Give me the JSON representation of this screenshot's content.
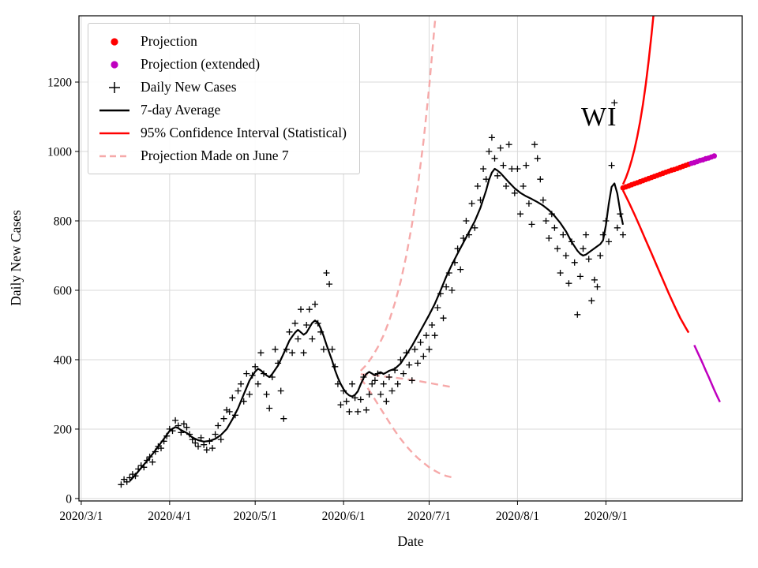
{
  "legend": {
    "items": [
      {
        "label": "Projection",
        "marker": "dot",
        "color": "#ff0000"
      },
      {
        "label": "Projection (extended)",
        "marker": "dot",
        "color": "#bf00bf"
      },
      {
        "label": "Daily New Cases",
        "marker": "plus",
        "color": "#000000"
      },
      {
        "label": "7-day Average",
        "marker": "line",
        "color": "#000000"
      },
      {
        "label": "95% Confidence Interval (Statistical)",
        "marker": "line",
        "color": "#ff0000"
      },
      {
        "label": "Projection Made on June 7",
        "marker": "dashed-line",
        "color": "#f6a9a9"
      }
    ]
  },
  "chart_data": {
    "type": "line",
    "title": "",
    "annotation": {
      "text": "WI",
      "near_date": "2020/8/28",
      "near_value": 1090
    },
    "x_axis": {
      "label": "Date",
      "day_zero": "2020/3/1",
      "ticks": [
        {
          "day": 0,
          "label": "2020/3/1"
        },
        {
          "day": 31,
          "label": "2020/4/1"
        },
        {
          "day": 61,
          "label": "2020/5/1"
        },
        {
          "day": 92,
          "label": "2020/6/1"
        },
        {
          "day": 122,
          "label": "2020/7/1"
        },
        {
          "day": 153,
          "label": "2020/8/1"
        },
        {
          "day": 184,
          "label": "2020/9/1"
        }
      ]
    },
    "y_axis": {
      "label": "Daily New Cases",
      "ticks": [
        0,
        200,
        400,
        600,
        800,
        1000,
        1200
      ],
      "range": [
        0,
        1390
      ]
    },
    "grid": true,
    "colors": {
      "daily_cases": "#000000",
      "avg7": "#000000",
      "projection": "#ff0000",
      "projection_extended": "#bf00bf",
      "confidence_interval": "#ff0000",
      "june7_projection": "#f6a9a9",
      "grid": "#d9d9d9"
    },
    "series": {
      "daily_new_cases": {
        "type": "scatter",
        "marker": "plus",
        "start_day": 14,
        "values": [
          40,
          55,
          48,
          60,
          70,
          65,
          85,
          95,
          90,
          110,
          120,
          105,
          135,
          150,
          145,
          165,
          180,
          200,
          195,
          225,
          210,
          190,
          215,
          205,
          185,
          170,
          160,
          150,
          175,
          155,
          140,
          165,
          145,
          185,
          210,
          170,
          230,
          255,
          250,
          290,
          240,
          310,
          330,
          280,
          360,
          300,
          355,
          380,
          330,
          420,
          360,
          300,
          260,
          350,
          430,
          390,
          310,
          230,
          430,
          480,
          420,
          505,
          460,
          545,
          420,
          500,
          545,
          460,
          560,
          505,
          480,
          430,
          650,
          618,
          430,
          380,
          330,
          270,
          310,
          280,
          250,
          330,
          290,
          250,
          285,
          350,
          255,
          300,
          330,
          340,
          360,
          300,
          330,
          280,
          350,
          310,
          370,
          330,
          400,
          360,
          420,
          385,
          340,
          430,
          390,
          450,
          410,
          470,
          430,
          500,
          470,
          550,
          590,
          520,
          610,
          650,
          600,
          680,
          720,
          660,
          750,
          800,
          760,
          850,
          780,
          900,
          860,
          950,
          920,
          1000,
          1040,
          980,
          930,
          1010,
          960,
          900,
          1020,
          950,
          880,
          950,
          820,
          900,
          960,
          850,
          790,
          1020,
          980,
          920,
          860,
          800,
          750,
          820,
          780,
          720,
          650,
          760,
          700,
          620,
          740,
          680,
          530,
          640,
          720,
          760,
          690,
          570,
          630,
          610,
          700,
          760,
          800,
          740,
          960,
          1140,
          780,
          820,
          760
        ]
      },
      "avg_7day": {
        "type": "line",
        "points": [
          [
            17,
            50
          ],
          [
            19,
            68
          ],
          [
            21,
            88
          ],
          [
            23,
            108
          ],
          [
            25,
            128
          ],
          [
            27,
            150
          ],
          [
            29,
            172
          ],
          [
            31,
            195
          ],
          [
            32,
            201
          ],
          [
            33,
            206
          ],
          [
            34,
            203
          ],
          [
            35,
            197
          ],
          [
            37,
            189
          ],
          [
            39,
            176
          ],
          [
            41,
            168
          ],
          [
            43,
            164
          ],
          [
            45,
            166
          ],
          [
            47,
            172
          ],
          [
            49,
            183
          ],
          [
            51,
            200
          ],
          [
            53,
            228
          ],
          [
            55,
            260
          ],
          [
            57,
            300
          ],
          [
            59,
            340
          ],
          [
            61,
            366
          ],
          [
            62,
            374
          ],
          [
            63,
            369
          ],
          [
            64,
            361
          ],
          [
            65,
            355
          ],
          [
            66,
            350
          ],
          [
            67,
            359
          ],
          [
            69,
            383
          ],
          [
            71,
            418
          ],
          [
            73,
            455
          ],
          [
            74,
            467
          ],
          [
            75,
            478
          ],
          [
            76,
            486
          ],
          [
            77,
            479
          ],
          [
            78,
            472
          ],
          [
            79,
            478
          ],
          [
            80,
            492
          ],
          [
            81,
            506
          ],
          [
            82,
            513
          ],
          [
            83,
            507
          ],
          [
            84,
            490
          ],
          [
            85,
            468
          ],
          [
            86,
            443
          ],
          [
            87,
            420
          ],
          [
            88,
            397
          ],
          [
            89,
            370
          ],
          [
            90,
            348
          ],
          [
            91,
            330
          ],
          [
            92,
            315
          ],
          [
            93,
            304
          ],
          [
            94,
            297
          ],
          [
            95,
            294
          ],
          [
            96,
            299
          ],
          [
            97,
            309
          ],
          [
            98,
            329
          ],
          [
            99,
            347
          ],
          [
            100,
            359
          ],
          [
            101,
            365
          ],
          [
            102,
            360
          ],
          [
            103,
            355
          ],
          [
            104,
            361
          ],
          [
            105,
            364
          ],
          [
            106,
            359
          ],
          [
            107,
            363
          ],
          [
            108,
            368
          ],
          [
            110,
            374
          ],
          [
            112,
            389
          ],
          [
            114,
            414
          ],
          [
            116,
            440
          ],
          [
            118,
            469
          ],
          [
            120,
            499
          ],
          [
            122,
            529
          ],
          [
            124,
            561
          ],
          [
            126,
            599
          ],
          [
            128,
            639
          ],
          [
            130,
            674
          ],
          [
            132,
            706
          ],
          [
            134,
            737
          ],
          [
            136,
            768
          ],
          [
            138,
            799
          ],
          [
            140,
            838
          ],
          [
            142,
            888
          ],
          [
            143,
            918
          ],
          [
            144,
            939
          ],
          [
            145,
            950
          ],
          [
            146,
            945
          ],
          [
            147,
            938
          ],
          [
            148,
            929
          ],
          [
            150,
            911
          ],
          [
            152,
            894
          ],
          [
            154,
            881
          ],
          [
            156,
            871
          ],
          [
            158,
            863
          ],
          [
            160,
            854
          ],
          [
            162,
            844
          ],
          [
            164,
            831
          ],
          [
            166,
            814
          ],
          [
            168,
            794
          ],
          [
            170,
            770
          ],
          [
            172,
            739
          ],
          [
            174,
            714
          ],
          [
            175,
            705
          ],
          [
            176,
            700
          ],
          [
            177,
            703
          ],
          [
            178,
            709
          ],
          [
            179,
            715
          ],
          [
            180,
            721
          ],
          [
            181,
            727
          ],
          [
            182,
            733
          ],
          [
            183,
            744
          ],
          [
            184,
            788
          ],
          [
            185,
            849
          ],
          [
            186,
            898
          ],
          [
            187,
            908
          ],
          [
            188,
            879
          ],
          [
            189,
            829
          ],
          [
            190,
            789
          ]
        ]
      },
      "projection": {
        "type": "scatter",
        "marker": "dot",
        "start_day": 190,
        "values": [
          895,
          898,
          901,
          904,
          907,
          910,
          913,
          916,
          919,
          922,
          925,
          928,
          931,
          934,
          937,
          940,
          943,
          946,
          948,
          951,
          954,
          957,
          960,
          963
        ]
      },
      "projection_extended": {
        "type": "scatter",
        "marker": "dot",
        "start_day": 214,
        "values": [
          966,
          968,
          971,
          974,
          976,
          979,
          981,
          984,
          987
        ]
      },
      "ci_upper": {
        "type": "line",
        "points": [
          [
            190,
            905
          ],
          [
            191,
            924
          ],
          [
            192,
            947
          ],
          [
            193,
            974
          ],
          [
            194,
            1006
          ],
          [
            195,
            1043
          ],
          [
            196,
            1086
          ],
          [
            197,
            1136
          ],
          [
            198,
            1194
          ],
          [
            199,
            1261
          ],
          [
            200,
            1338
          ],
          [
            201,
            1420
          ]
        ]
      },
      "ci_lower": {
        "type": "line",
        "points": [
          [
            190,
            888
          ],
          [
            192,
            854
          ],
          [
            194,
            819
          ],
          [
            196,
            782
          ],
          [
            198,
            744
          ],
          [
            200,
            706
          ],
          [
            202,
            668
          ],
          [
            204,
            630
          ],
          [
            206,
            592
          ],
          [
            208,
            556
          ],
          [
            210,
            521
          ],
          [
            212,
            492
          ],
          [
            213,
            478
          ]
        ]
      },
      "ci_lower_extended": {
        "type": "line",
        "points": [
          [
            215,
            442
          ],
          [
            216,
            424
          ],
          [
            217,
            406
          ],
          [
            218,
            388
          ],
          [
            219,
            369
          ],
          [
            220,
            351
          ],
          [
            221,
            332
          ],
          [
            222,
            313
          ],
          [
            223,
            295
          ],
          [
            224,
            278
          ]
        ]
      },
      "june7_upper": {
        "type": "line",
        "dash": true,
        "points": [
          [
            98,
            368
          ],
          [
            100,
            385
          ],
          [
            102,
            408
          ],
          [
            104,
            436
          ],
          [
            106,
            470
          ],
          [
            108,
            512
          ],
          [
            110,
            563
          ],
          [
            112,
            625
          ],
          [
            114,
            700
          ],
          [
            116,
            790
          ],
          [
            118,
            898
          ],
          [
            120,
            1028
          ],
          [
            122,
            1184
          ],
          [
            124,
            1370
          ],
          [
            125,
            1430
          ]
        ]
      },
      "june7_median": {
        "type": "line",
        "dash": true,
        "points": [
          [
            98,
            358
          ],
          [
            102,
            356
          ],
          [
            106,
            352
          ],
          [
            110,
            348
          ],
          [
            114,
            344
          ],
          [
            118,
            339
          ],
          [
            122,
            333
          ],
          [
            126,
            327
          ],
          [
            130,
            321
          ]
        ]
      },
      "june7_lower": {
        "type": "line",
        "dash": true,
        "points": [
          [
            98,
            346
          ],
          [
            100,
            324
          ],
          [
            102,
            299
          ],
          [
            104,
            272
          ],
          [
            106,
            246
          ],
          [
            108,
            220
          ],
          [
            110,
            195
          ],
          [
            112,
            172
          ],
          [
            114,
            151
          ],
          [
            116,
            133
          ],
          [
            118,
            117
          ],
          [
            120,
            103
          ],
          [
            122,
            90
          ],
          [
            124,
            80
          ],
          [
            126,
            71
          ],
          [
            128,
            65
          ],
          [
            130,
            61
          ]
        ]
      }
    }
  }
}
